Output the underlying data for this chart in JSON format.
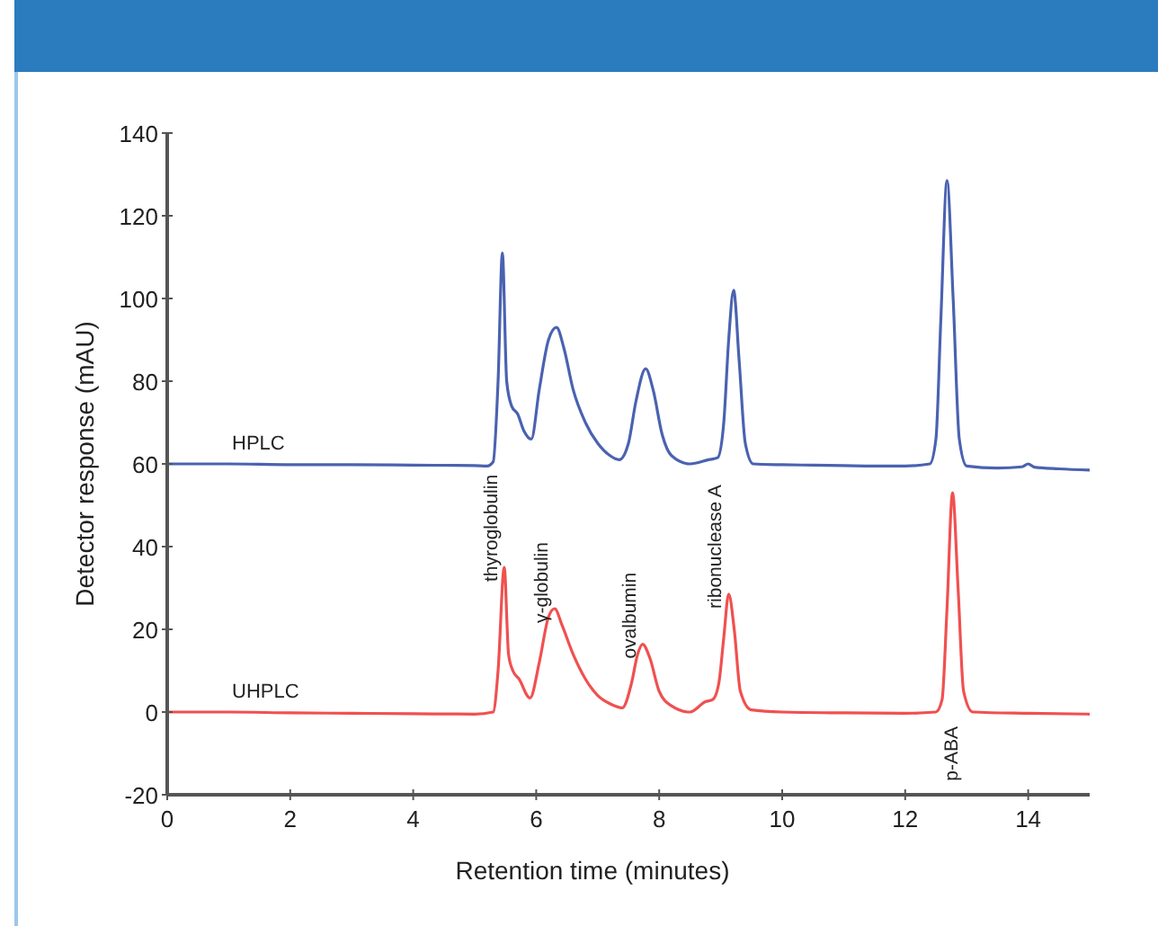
{
  "chart_data": {
    "type": "line",
    "xlabel": "Retention time (minutes)",
    "ylabel": "Detector response (mAU)",
    "xlim": [
      0,
      15
    ],
    "ylim": [
      -20,
      140
    ],
    "xticks": [
      0,
      2,
      4,
      6,
      8,
      10,
      12,
      14
    ],
    "yticks": [
      -20,
      0,
      20,
      40,
      60,
      80,
      100,
      120,
      140
    ],
    "grid": false,
    "legend": false,
    "marker": "none",
    "line_style": "solid",
    "series": [
      {
        "name": "HPLC",
        "color": "#4a62b0",
        "x": [
          0,
          1,
          2,
          3,
          4,
          5,
          5.2,
          5.3,
          5.38,
          5.45,
          5.52,
          5.6,
          5.7,
          5.8,
          5.92,
          6.05,
          6.2,
          6.33,
          6.45,
          6.6,
          6.8,
          7,
          7.2,
          7.35,
          7.5,
          7.62,
          7.78,
          7.9,
          8.05,
          8.2,
          8.5,
          8.8,
          8.95,
          9.05,
          9.13,
          9.21,
          9.3,
          9.4,
          9.53,
          10,
          10.5,
          11,
          11.5,
          12,
          12.4,
          12.5,
          12.58,
          12.68,
          12.78,
          12.88,
          13,
          13.5,
          13.9,
          14,
          14.1,
          14.5,
          15
        ],
        "values": [
          60,
          60,
          59.8,
          59.8,
          59.7,
          59.6,
          59.5,
          60.5,
          80,
          111,
          80,
          74,
          72,
          68,
          66,
          78,
          90,
          93,
          88,
          78,
          70,
          65,
          62,
          61,
          65,
          75,
          83,
          78,
          67,
          62,
          60,
          61,
          61.5,
          70,
          90,
          102,
          85,
          65,
          60,
          59.8,
          59.7,
          59.6,
          59.5,
          59.5,
          60,
          66,
          95,
          128.5,
          100,
          66,
          59.5,
          59,
          59.3,
          60,
          59.2,
          58.8,
          58.5
        ]
      },
      {
        "name": "UHPLC",
        "color": "#f05050",
        "x": [
          0,
          1,
          2,
          3,
          4,
          5,
          5.3,
          5.38,
          5.48,
          5.55,
          5.62,
          5.72,
          5.9,
          6.05,
          6.2,
          6.3,
          6.42,
          6.6,
          6.8,
          7,
          7.2,
          7.4,
          7.55,
          7.65,
          7.73,
          7.85,
          8,
          8.2,
          8.5,
          8.75,
          8.87,
          8.97,
          9.05,
          9.13,
          9.22,
          9.32,
          9.5,
          10,
          11,
          12,
          12.5,
          12.6,
          12.68,
          12.77,
          12.86,
          12.95,
          13.1,
          14,
          15
        ],
        "values": [
          0,
          0,
          -0.2,
          -0.3,
          -0.4,
          -0.5,
          0,
          10,
          35,
          14,
          10,
          8,
          3.4,
          12,
          23,
          25,
          21,
          14,
          8,
          4,
          2,
          1,
          7,
          14,
          16.4,
          13,
          5,
          1.5,
          0,
          2.5,
          3,
          7,
          18,
          28.5,
          20,
          5,
          0.5,
          0,
          -0.2,
          -0.3,
          0,
          3,
          25,
          53,
          30,
          5,
          0,
          -0.3,
          -0.5
        ]
      }
    ],
    "annotations": [
      {
        "text": "thyroglobulin",
        "x": 5.48,
        "y": 35
      },
      {
        "text": "γ-globulin",
        "x": 6.3,
        "y": 25
      },
      {
        "text": "ovalbumin",
        "x": 7.73,
        "y": 16.4
      },
      {
        "text": "ribonuclease A",
        "x": 9.13,
        "y": 28.5
      },
      {
        "text": "p-ABA",
        "x": 12.5,
        "y": 0
      }
    ]
  }
}
